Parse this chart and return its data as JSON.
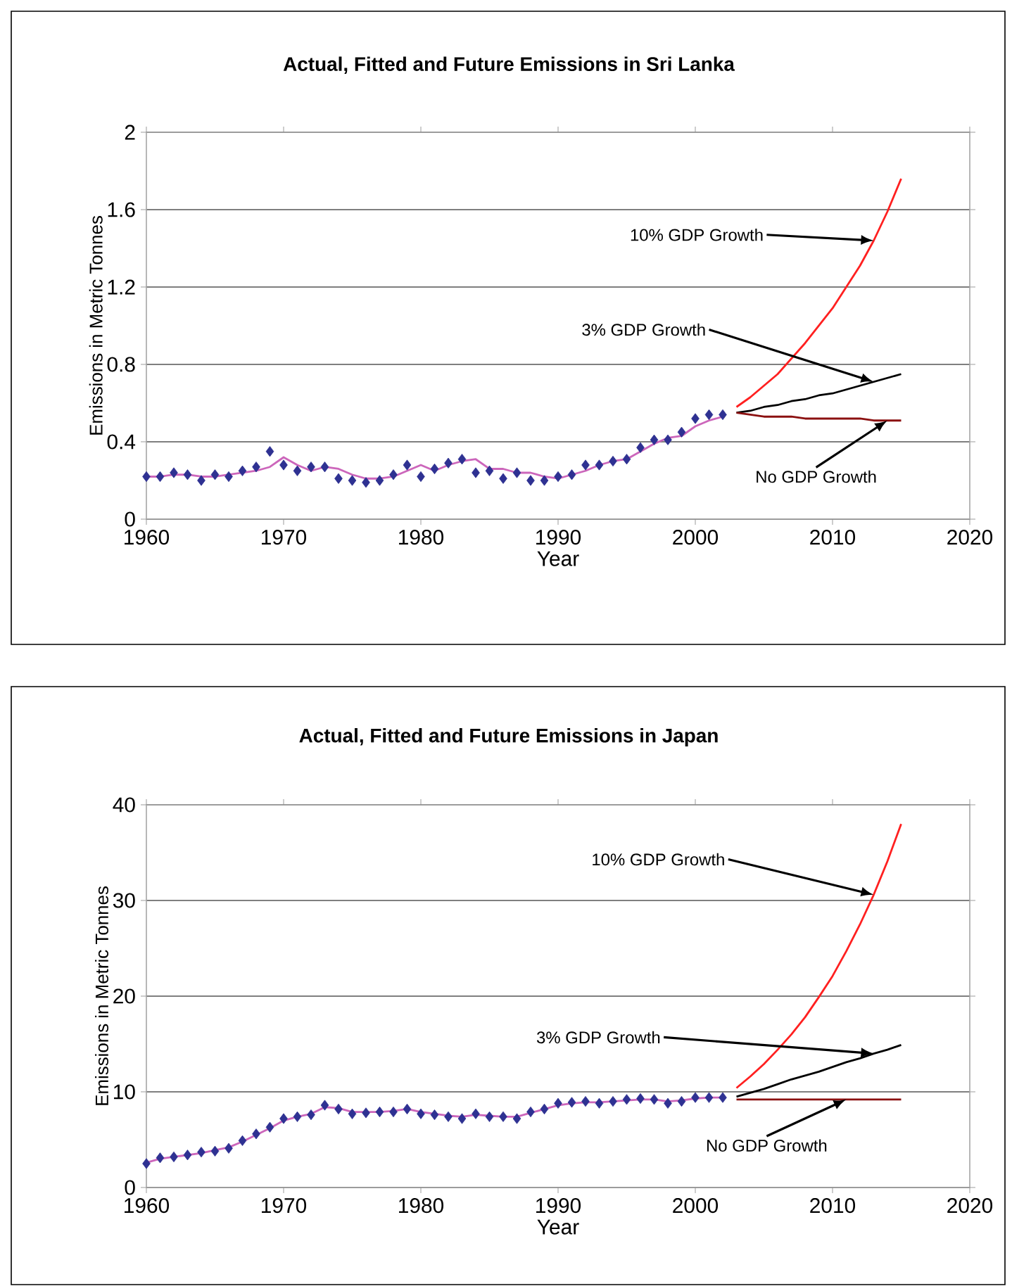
{
  "chart_data": [
    {
      "type": "line",
      "title": "Actual, Fitted and Future Emissions in Sri Lanka",
      "xlabel": "Year",
      "ylabel": "Emissions in Metric Tonnes",
      "xlim": [
        1960,
        2020
      ],
      "xticks": [
        1960,
        1970,
        1980,
        1990,
        2000,
        2010,
        2020
      ],
      "ylim": [
        0,
        2
      ],
      "yticks": [
        0,
        0.4,
        0.8,
        1.2,
        1.6,
        2
      ],
      "grid": "y",
      "series": [
        {
          "type": "scatter",
          "marker": "diamond",
          "color": "#2e3192",
          "x": [
            1960,
            1961,
            1962,
            1963,
            1964,
            1965,
            1966,
            1967,
            1968,
            1969,
            1970,
            1971,
            1972,
            1973,
            1974,
            1975,
            1976,
            1977,
            1978,
            1979,
            1980,
            1981,
            1982,
            1983,
            1984,
            1985,
            1986,
            1987,
            1988,
            1989,
            1990,
            1991,
            1992,
            1993,
            1994,
            1995,
            1996,
            1997,
            1998,
            1999,
            2000,
            2001,
            2002
          ],
          "values": [
            0.22,
            0.22,
            0.24,
            0.23,
            0.2,
            0.23,
            0.22,
            0.25,
            0.27,
            0.35,
            0.28,
            0.25,
            0.27,
            0.27,
            0.21,
            0.2,
            0.19,
            0.2,
            0.23,
            0.28,
            0.22,
            0.26,
            0.29,
            0.31,
            0.24,
            0.25,
            0.21,
            0.24,
            0.2,
            0.2,
            0.22,
            0.23,
            0.28,
            0.28,
            0.3,
            0.31,
            0.37,
            0.41,
            0.41,
            0.45,
            0.52,
            0.54,
            0.54
          ]
        },
        {
          "color": "#cc66bb",
          "x": [
            1960,
            1961,
            1962,
            1963,
            1964,
            1965,
            1966,
            1967,
            1968,
            1969,
            1970,
            1971,
            1972,
            1973,
            1974,
            1975,
            1976,
            1977,
            1978,
            1979,
            1980,
            1981,
            1982,
            1983,
            1984,
            1985,
            1986,
            1987,
            1988,
            1989,
            1990,
            1991,
            1992,
            1993,
            1994,
            1995,
            1996,
            1997,
            1998,
            1999,
            2000,
            2001,
            2002
          ],
          "values": [
            0.22,
            0.22,
            0.23,
            0.23,
            0.22,
            0.22,
            0.23,
            0.24,
            0.25,
            0.27,
            0.32,
            0.28,
            0.25,
            0.27,
            0.26,
            0.23,
            0.21,
            0.21,
            0.22,
            0.25,
            0.28,
            0.25,
            0.28,
            0.3,
            0.31,
            0.26,
            0.26,
            0.24,
            0.24,
            0.22,
            0.21,
            0.23,
            0.25,
            0.28,
            0.3,
            0.31,
            0.35,
            0.39,
            0.42,
            0.43,
            0.48,
            0.51,
            0.53
          ]
        },
        {
          "color": "#ff2020",
          "x": [
            2003,
            2004,
            2005,
            2006,
            2007,
            2008,
            2009,
            2010,
            2011,
            2012,
            2013,
            2014,
            2015
          ],
          "values": [
            0.58,
            0.63,
            0.69,
            0.75,
            0.83,
            0.91,
            1.0,
            1.09,
            1.2,
            1.31,
            1.44,
            1.59,
            1.76
          ]
        },
        {
          "color": "#000000",
          "x": [
            2003,
            2004,
            2005,
            2006,
            2007,
            2008,
            2009,
            2010,
            2011,
            2012,
            2013,
            2014,
            2015
          ],
          "values": [
            0.55,
            0.56,
            0.58,
            0.59,
            0.61,
            0.62,
            0.64,
            0.65,
            0.67,
            0.69,
            0.71,
            0.73,
            0.75
          ]
        },
        {
          "color": "#8b1010",
          "x": [
            2003,
            2004,
            2005,
            2006,
            2007,
            2008,
            2009,
            2010,
            2011,
            2012,
            2013,
            2014,
            2015
          ],
          "values": [
            0.55,
            0.54,
            0.53,
            0.53,
            0.53,
            0.52,
            0.52,
            0.52,
            0.52,
            0.52,
            0.51,
            0.51,
            0.51
          ]
        }
      ],
      "annotations": [
        {
          "text": "10% GDP Growth",
          "x": 2013,
          "y": 1.44
        },
        {
          "text": "3% GDP Growth",
          "x": 2013,
          "y": 0.71
        },
        {
          "text": "No GDP Growth",
          "x": 2014,
          "y": 0.51
        }
      ]
    },
    {
      "type": "line",
      "title": "Actual, Fitted and Future Emissions in Japan",
      "xlabel": "Year",
      "ylabel": "Emissions in Metric Tonnes",
      "xlim": [
        1960,
        2020
      ],
      "xticks": [
        1960,
        1970,
        1980,
        1990,
        2000,
        2010,
        2020
      ],
      "ylim": [
        0,
        40
      ],
      "yticks": [
        0,
        10,
        20,
        30,
        40
      ],
      "grid": "y",
      "series": [
        {
          "type": "scatter",
          "marker": "diamond",
          "color": "#2e3192",
          "x": [
            1960,
            1961,
            1962,
            1963,
            1964,
            1965,
            1966,
            1967,
            1968,
            1969,
            1970,
            1971,
            1972,
            1973,
            1974,
            1975,
            1976,
            1977,
            1978,
            1979,
            1980,
            1981,
            1982,
            1983,
            1984,
            1985,
            1986,
            1987,
            1988,
            1989,
            1990,
            1991,
            1992,
            1993,
            1994,
            1995,
            1996,
            1997,
            1998,
            1999,
            2000,
            2001,
            2002
          ],
          "values": [
            2.5,
            3.1,
            3.2,
            3.4,
            3.7,
            3.8,
            4.1,
            4.9,
            5.6,
            6.3,
            7.2,
            7.4,
            7.6,
            8.6,
            8.2,
            7.7,
            7.8,
            7.9,
            7.9,
            8.2,
            7.7,
            7.6,
            7.4,
            7.2,
            7.7,
            7.4,
            7.4,
            7.2,
            7.9,
            8.2,
            8.8,
            8.9,
            9.0,
            8.8,
            9.0,
            9.2,
            9.3,
            9.2,
            8.8,
            9.0,
            9.4,
            9.4,
            9.4
          ]
        },
        {
          "color": "#cc66bb",
          "x": [
            1960,
            1961,
            1962,
            1963,
            1964,
            1965,
            1966,
            1967,
            1968,
            1969,
            1970,
            1971,
            1972,
            1973,
            1974,
            1975,
            1976,
            1977,
            1978,
            1979,
            1980,
            1981,
            1982,
            1983,
            1984,
            1985,
            1986,
            1987,
            1988,
            1989,
            1990,
            1991,
            1992,
            1993,
            1994,
            1995,
            1996,
            1997,
            1998,
            1999,
            2000,
            2001,
            2002
          ],
          "values": [
            2.6,
            3.0,
            3.2,
            3.4,
            3.6,
            3.9,
            4.2,
            4.8,
            5.5,
            6.2,
            7.0,
            7.4,
            7.7,
            8.4,
            8.3,
            7.9,
            7.9,
            7.9,
            8.0,
            8.2,
            7.9,
            7.7,
            7.5,
            7.4,
            7.6,
            7.5,
            7.4,
            7.4,
            7.8,
            8.2,
            8.6,
            8.8,
            8.9,
            8.9,
            9.0,
            9.1,
            9.2,
            9.2,
            9.0,
            9.1,
            9.3,
            9.4,
            9.4
          ]
        },
        {
          "color": "#ff2020",
          "x": [
            2003,
            2004,
            2005,
            2006,
            2007,
            2008,
            2009,
            2010,
            2011,
            2012,
            2013,
            2014,
            2015
          ],
          "values": [
            10.4,
            11.6,
            12.9,
            14.4,
            16.0,
            17.8,
            19.9,
            22.1,
            24.7,
            27.5,
            30.6,
            34.1,
            38.0
          ]
        },
        {
          "color": "#000000",
          "x": [
            2003,
            2004,
            2005,
            2006,
            2007,
            2008,
            2009,
            2010,
            2011,
            2012,
            2013,
            2014,
            2015
          ],
          "values": [
            9.5,
            9.9,
            10.3,
            10.8,
            11.3,
            11.7,
            12.1,
            12.6,
            13.1,
            13.5,
            14.0,
            14.4,
            14.9
          ]
        },
        {
          "color": "#8b1010",
          "x": [
            2003,
            2004,
            2005,
            2006,
            2007,
            2008,
            2009,
            2010,
            2011,
            2012,
            2013,
            2014,
            2015
          ],
          "values": [
            9.2,
            9.2,
            9.2,
            9.2,
            9.2,
            9.2,
            9.2,
            9.2,
            9.2,
            9.2,
            9.2,
            9.2,
            9.2
          ]
        }
      ],
      "annotations": [
        {
          "text": "10% GDP Growth",
          "x": 2013,
          "y": 30.6
        },
        {
          "text": "3% GDP Growth",
          "x": 2013,
          "y": 14.0
        },
        {
          "text": "No GDP Growth",
          "x": 2011,
          "y": 9.2
        }
      ]
    }
  ]
}
